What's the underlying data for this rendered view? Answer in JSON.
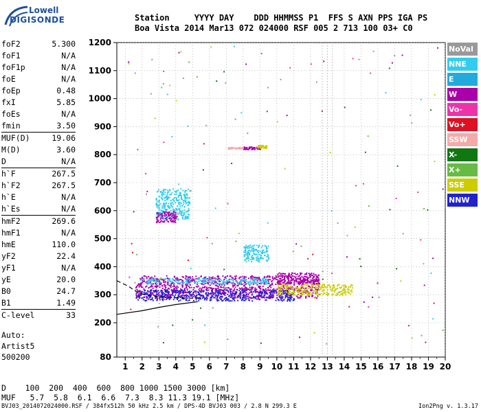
{
  "logo": {
    "line1": "Lowell",
    "line2": "DIGISONDE"
  },
  "header": {
    "line1": "Station     YYYY DAY    DDD HHMMSS P1  FFS S AXN PPS IGA PS",
    "line2": "Boa Vista 2014 Mar13 072 024000 RSF 005 2 713 100 03+ C0"
  },
  "params": [
    {
      "name": "foF2",
      "value": "5.300"
    },
    {
      "name": "foF1",
      "value": "N/A"
    },
    {
      "name": "foF1p",
      "value": "N/A"
    },
    {
      "name": "foE",
      "value": "N/A"
    },
    {
      "name": "foEp",
      "value": "0.48"
    },
    {
      "name": "fxI",
      "value": "5.85"
    },
    {
      "name": "foEs",
      "value": "N/A"
    },
    {
      "name": "fmin",
      "value": "3.50"
    },
    {
      "name": "MUF(D)",
      "value": "19.06",
      "sep": true
    },
    {
      "name": "M(D)",
      "value": "3.60"
    },
    {
      "name": "D",
      "value": "N/A"
    },
    {
      "name": "h`F",
      "value": "267.5",
      "sep": true
    },
    {
      "name": "h`F2",
      "value": "267.5"
    },
    {
      "name": "h`E",
      "value": "N/A"
    },
    {
      "name": "h`Es",
      "value": "N/A"
    },
    {
      "name": "hmF2",
      "value": "269.6",
      "sep": true
    },
    {
      "name": "hmF1",
      "value": "N/A"
    },
    {
      "name": "hmE",
      "value": "110.0"
    },
    {
      "name": "yF2",
      "value": "22.4"
    },
    {
      "name": "yF1",
      "value": "N/A"
    },
    {
      "name": "yE",
      "value": "20.0"
    },
    {
      "name": "B0",
      "value": "24.7"
    },
    {
      "name": "B1",
      "value": "1.49"
    },
    {
      "name": "C-level",
      "value": "33",
      "sep": true
    }
  ],
  "auto": {
    "line1": "Auto:",
    "line2": "Artist5",
    "line3": "500200"
  },
  "dtable": {
    "row1": "D    100  200  400  600  800 1000 1500 3000 [km]",
    "row2": "MUF   5.7  5.8  6.1  6.6  7.3  8.3 11.3 19.1 [MHz]"
  },
  "footer": "BVJ03_2014072024000.RSF / 384fx512h 50 kHz 2.5 km / DPS-4D BVJ03 003 / 2.8 N 299.3 E",
  "version": "Ion2Png v. 1.3.17",
  "legend": [
    {
      "label": "NoVal",
      "color": "#999999"
    },
    {
      "label": "NNE",
      "color": "#33ccee"
    },
    {
      "label": "E",
      "color": "#22aadd"
    },
    {
      "label": "W",
      "color": "#aa00aa"
    },
    {
      "label": "Vo-",
      "color": "#ee33aa"
    },
    {
      "label": "Vo+",
      "color": "#dd1122"
    },
    {
      "label": "SSW",
      "color": "#f5aaaa"
    },
    {
      "label": "X-",
      "color": "#117711"
    },
    {
      "label": "X+",
      "color": "#66bb44"
    },
    {
      "label": "SSE",
      "color": "#cccc00"
    },
    {
      "label": "NNW",
      "color": "#2222cc"
    }
  ],
  "chart_data": {
    "type": "scatter",
    "x_ticks": [
      1,
      2,
      3,
      4,
      5,
      6,
      7,
      8,
      9,
      10,
      11,
      12,
      13,
      14,
      15,
      16,
      17,
      18,
      19,
      20
    ],
    "y_ticks": [
      80,
      200,
      300,
      400,
      500,
      600,
      700,
      800,
      900,
      1000,
      1100,
      1200
    ],
    "xlim": [
      0.5,
      20
    ],
    "ylim": [
      80,
      1200
    ],
    "grid": true,
    "legend_position": "right",
    "clusters": [
      {
        "mode": "W",
        "freq_range": [
          1.6,
          12.5
        ],
        "height_range": [
          290,
          370
        ]
      },
      {
        "mode": "NNE",
        "freq_range": [
          1.8,
          9.5
        ],
        "height_range": [
          340,
          360
        ]
      },
      {
        "mode": "NNW",
        "freq_range": [
          1.6,
          11.0
        ],
        "height_range": [
          280,
          320
        ]
      },
      {
        "mode": "NNE",
        "freq_range": [
          8.0,
          9.5
        ],
        "height_range": [
          420,
          480
        ]
      },
      {
        "mode": "NNE",
        "freq_range": [
          2.8,
          4.8
        ],
        "height_range": [
          570,
          680
        ]
      },
      {
        "mode": "W",
        "freq_range": [
          2.8,
          4.0
        ],
        "height_range": [
          560,
          600
        ]
      },
      {
        "mode": "SSE",
        "freq_range": [
          10.0,
          14.5
        ],
        "height_range": [
          300,
          340
        ]
      },
      {
        "mode": "W",
        "freq_range": [
          10.0,
          12.5
        ],
        "height_range": [
          340,
          380
        ]
      },
      {
        "mode": "W",
        "freq_range": [
          8.0,
          9.0
        ],
        "height_range": [
          820,
          830
        ]
      },
      {
        "mode": "SSE",
        "freq_range": [
          8.8,
          9.4
        ],
        "height_range": [
          825,
          835
        ]
      },
      {
        "mode": "SSW",
        "freq_range": [
          7.0,
          8.0
        ],
        "height_range": [
          822,
          828
        ]
      }
    ],
    "reference_curves": [
      {
        "name": "solid",
        "points": [
          [
            0.5,
            230
          ],
          [
            2,
            243
          ],
          [
            3,
            255
          ],
          [
            4,
            265
          ],
          [
            5.3,
            275
          ]
        ]
      },
      {
        "name": "dashed",
        "points": [
          [
            0.5,
            350
          ],
          [
            1.2,
            330
          ],
          [
            1.8,
            305
          ],
          [
            2.6,
            295
          ],
          [
            3.5,
            290
          ],
          [
            5.3,
            287
          ]
        ]
      }
    ],
    "vertical_markers": [
      12.7,
      13.0,
      13.3
    ]
  }
}
